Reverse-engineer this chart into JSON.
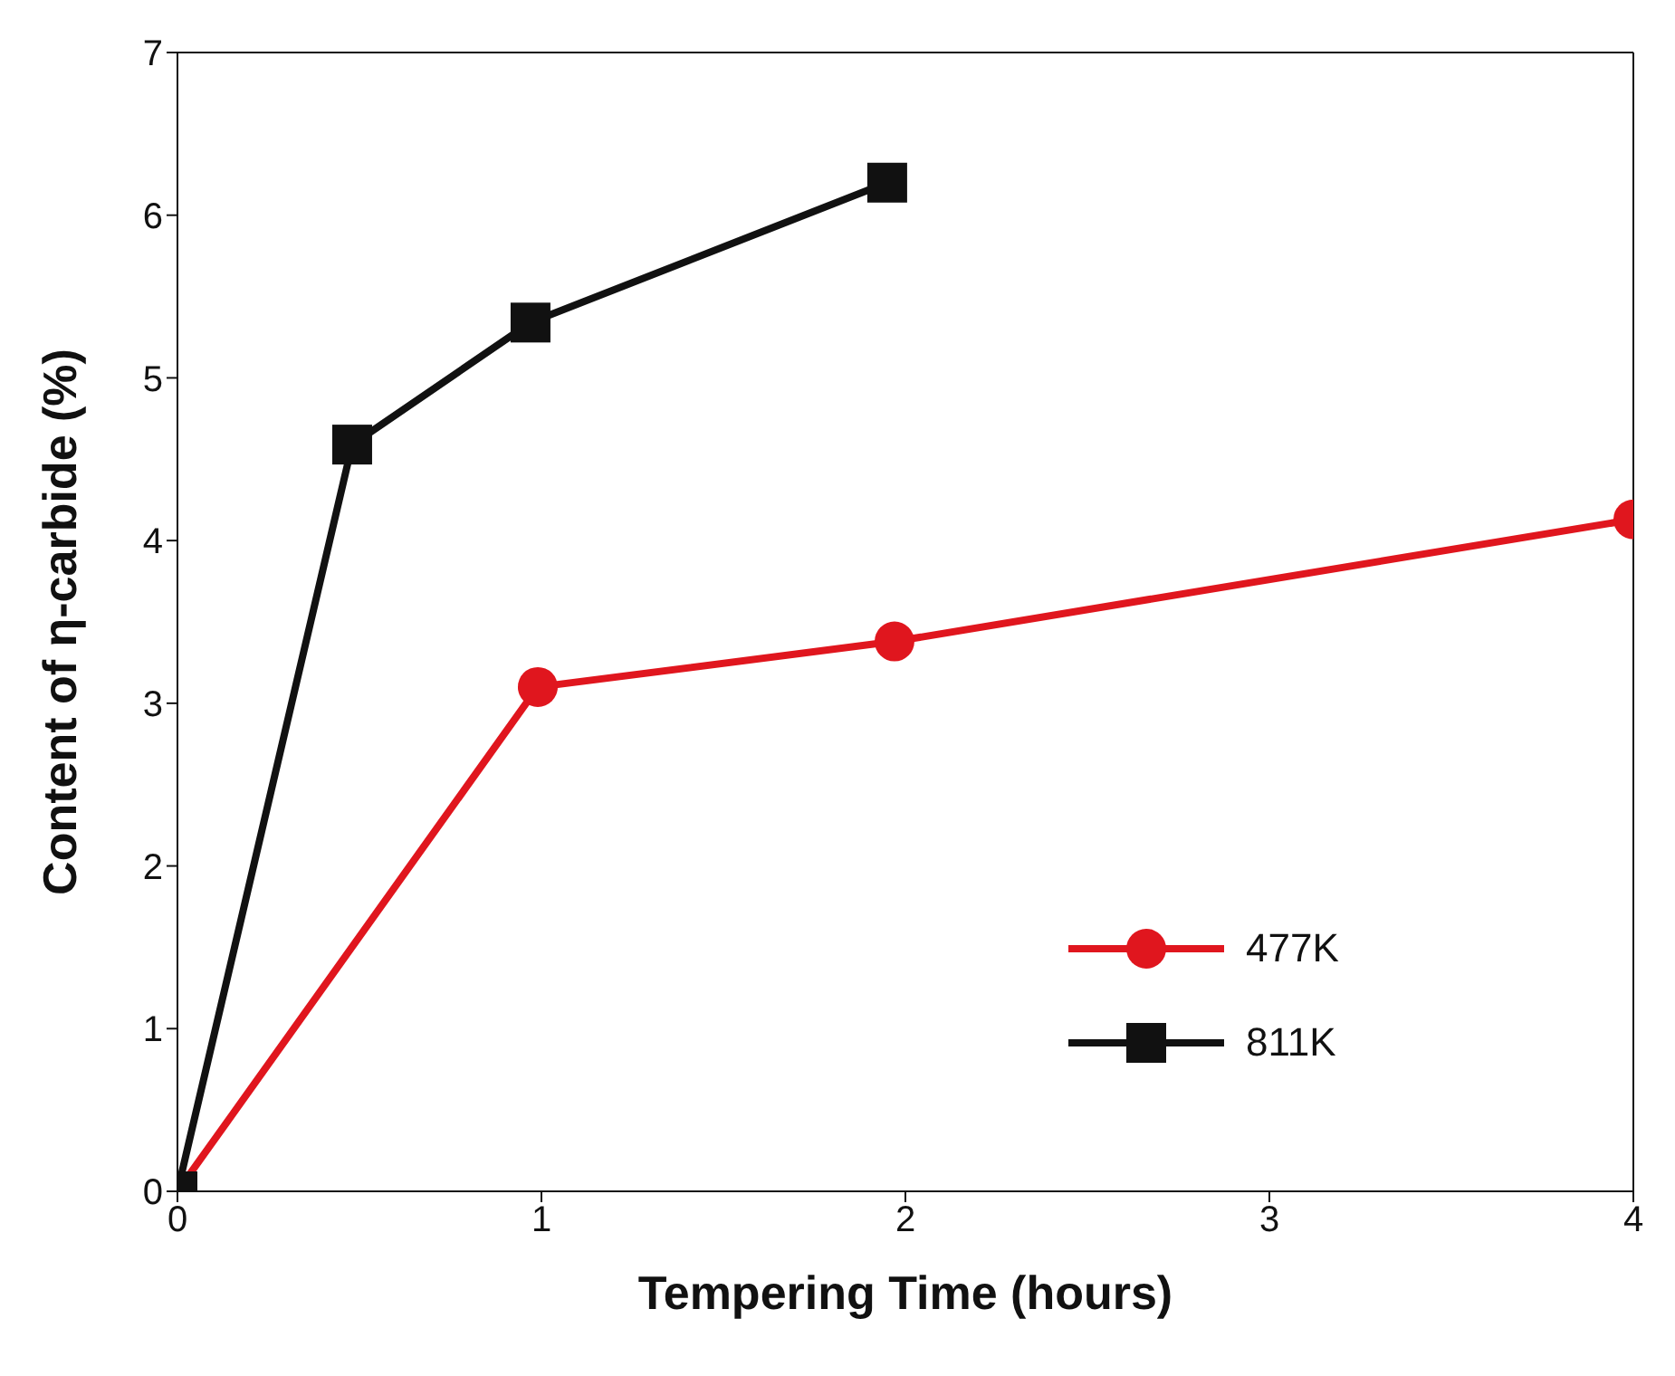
{
  "chart_data": {
    "type": "line",
    "xlabel": "Tempering Time (hours)",
    "ylabel": "Content of η-carbide (%)",
    "xlim": [
      0,
      4
    ],
    "xticks": [
      0,
      1,
      2,
      3,
      4
    ],
    "ylim": [
      0,
      7
    ],
    "yticks": [
      0,
      1,
      2,
      3,
      4,
      5,
      6,
      7
    ],
    "grid": false,
    "legend": "bottom right",
    "series": [
      {
        "name": "477K",
        "color": "#e0161e",
        "marker": "circle",
        "x": [
          0,
          0.99,
          1.97,
          4
        ],
        "values": [
          0,
          3.1,
          3.38,
          4.13
        ]
      },
      {
        "name": "811K",
        "color": "#111111",
        "marker": "square",
        "x": [
          0,
          0.48,
          0.97,
          1.95
        ],
        "values": [
          0,
          4.59,
          5.34,
          6.2
        ]
      }
    ]
  }
}
